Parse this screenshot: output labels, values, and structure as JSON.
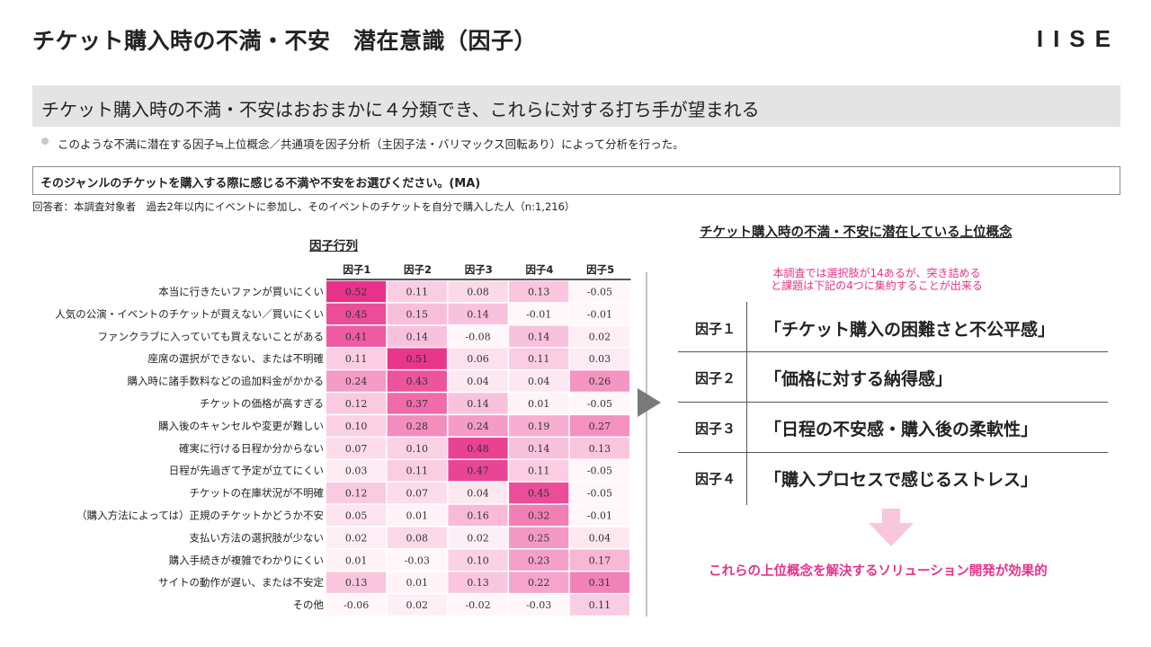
{
  "header": {
    "title": "チケット購入時の不満・不安　潜在意識（因子）",
    "logo": "IISE"
  },
  "banner": {
    "text": "チケット購入時の不満・不安はおおまかに４分類でき、これらに対する打ち手が望まれる"
  },
  "bullet": {
    "text": "このような不満に潜在する因子≒上位概念／共通項を因子分析（主因子法・バリマックス回転あり）によって分析を行った。"
  },
  "question": {
    "text": "そのジャンルのチケットを購入する際に感じる不満や不安をお選びください。(MA)"
  },
  "respondent": {
    "text": "回答者：本調査対象者　過去2年以内にイベントに参加し、そのイベントのチケットを自分で購入した人（n:1,216）"
  },
  "matrix_title": "因子行列",
  "chart_data": {
    "type": "heatmap",
    "title": "因子行列",
    "columns": [
      "因子1",
      "因子2",
      "因子3",
      "因子4",
      "因子5"
    ],
    "rows": [
      "本当に行きたいファンが買いにくい",
      "人気の公演・イベントのチケットが買えない／買いにくい",
      "ファンクラブに入っていても買えないことがある",
      "座席の選択ができない、または不明確",
      "購入時に諸手数料などの追加料金がかかる",
      "チケットの価格が高すぎる",
      "購入後のキャンセルや変更が難しい",
      "確実に行ける日程か分からない",
      "日程が先過ぎて予定が立てにくい",
      "チケットの在庫状況が不明確",
      "（購入方法によっては）正規のチケットかどうか不安",
      "支払い方法の選択肢が少ない",
      "購入手続きが複雑でわかりにくい",
      "サイトの動作が遅い、または不安定",
      "その他"
    ],
    "values": [
      [
        "0.52",
        "0.11",
        "0.08",
        "0.13",
        "-0.05"
      ],
      [
        "0.45",
        "0.15",
        "0.14",
        "-0.01",
        "-0.01"
      ],
      [
        "0.41",
        "0.14",
        "-0.08",
        "0.14",
        "0.02"
      ],
      [
        "0.11",
        "0.51",
        "0.06",
        "0.11",
        "0.03"
      ],
      [
        "0.24",
        "0.43",
        "0.04",
        "0.04",
        "0.26"
      ],
      [
        "0.12",
        "0.37",
        "0.14",
        "0.01",
        "-0.05"
      ],
      [
        "0.10",
        "0.28",
        "0.24",
        "0.19",
        "0.27"
      ],
      [
        "0.07",
        "0.10",
        "0.48",
        "0.14",
        "0.13"
      ],
      [
        "0.03",
        "0.11",
        "0.47",
        "0.11",
        "-0.05"
      ],
      [
        "0.12",
        "0.07",
        "0.04",
        "0.45",
        "-0.05"
      ],
      [
        "0.05",
        "0.01",
        "0.16",
        "0.32",
        "-0.01"
      ],
      [
        "0.02",
        "0.08",
        "0.02",
        "0.25",
        "0.04"
      ],
      [
        "0.01",
        "-0.03",
        "0.10",
        "0.23",
        "0.17"
      ],
      [
        "0.13",
        "0.01",
        "0.13",
        "0.22",
        "0.31"
      ],
      [
        "-0.06",
        "0.02",
        "-0.02",
        "-0.03",
        "0.11"
      ]
    ],
    "highlight_color": "#e8328a"
  },
  "right": {
    "title": "チケット購入時の不満・不安に潜在している上位概念",
    "note_line1": "本調査では選択肢が14あるが、突き詰める",
    "note_line2": "と課題は下記の4つに集約することが出来る",
    "factors": [
      {
        "label": "因子１",
        "name": "「チケット購入の困難さと不公平感」"
      },
      {
        "label": "因子２",
        "name": "「価格に対する納得感」"
      },
      {
        "label": "因子３",
        "name": "「日程の不安感・購入後の柔軟性」"
      },
      {
        "label": "因子４",
        "name": "「購入プロセスで感じるストレス」"
      }
    ],
    "conclusion": "これらの上位概念を解決するソリューション開発が効果的"
  },
  "colors": {
    "accent": "#e8328a",
    "banner_bg": "#e4e4e4",
    "arrow": "#7a7a7a",
    "down_arrow": "#f8c7dd"
  }
}
